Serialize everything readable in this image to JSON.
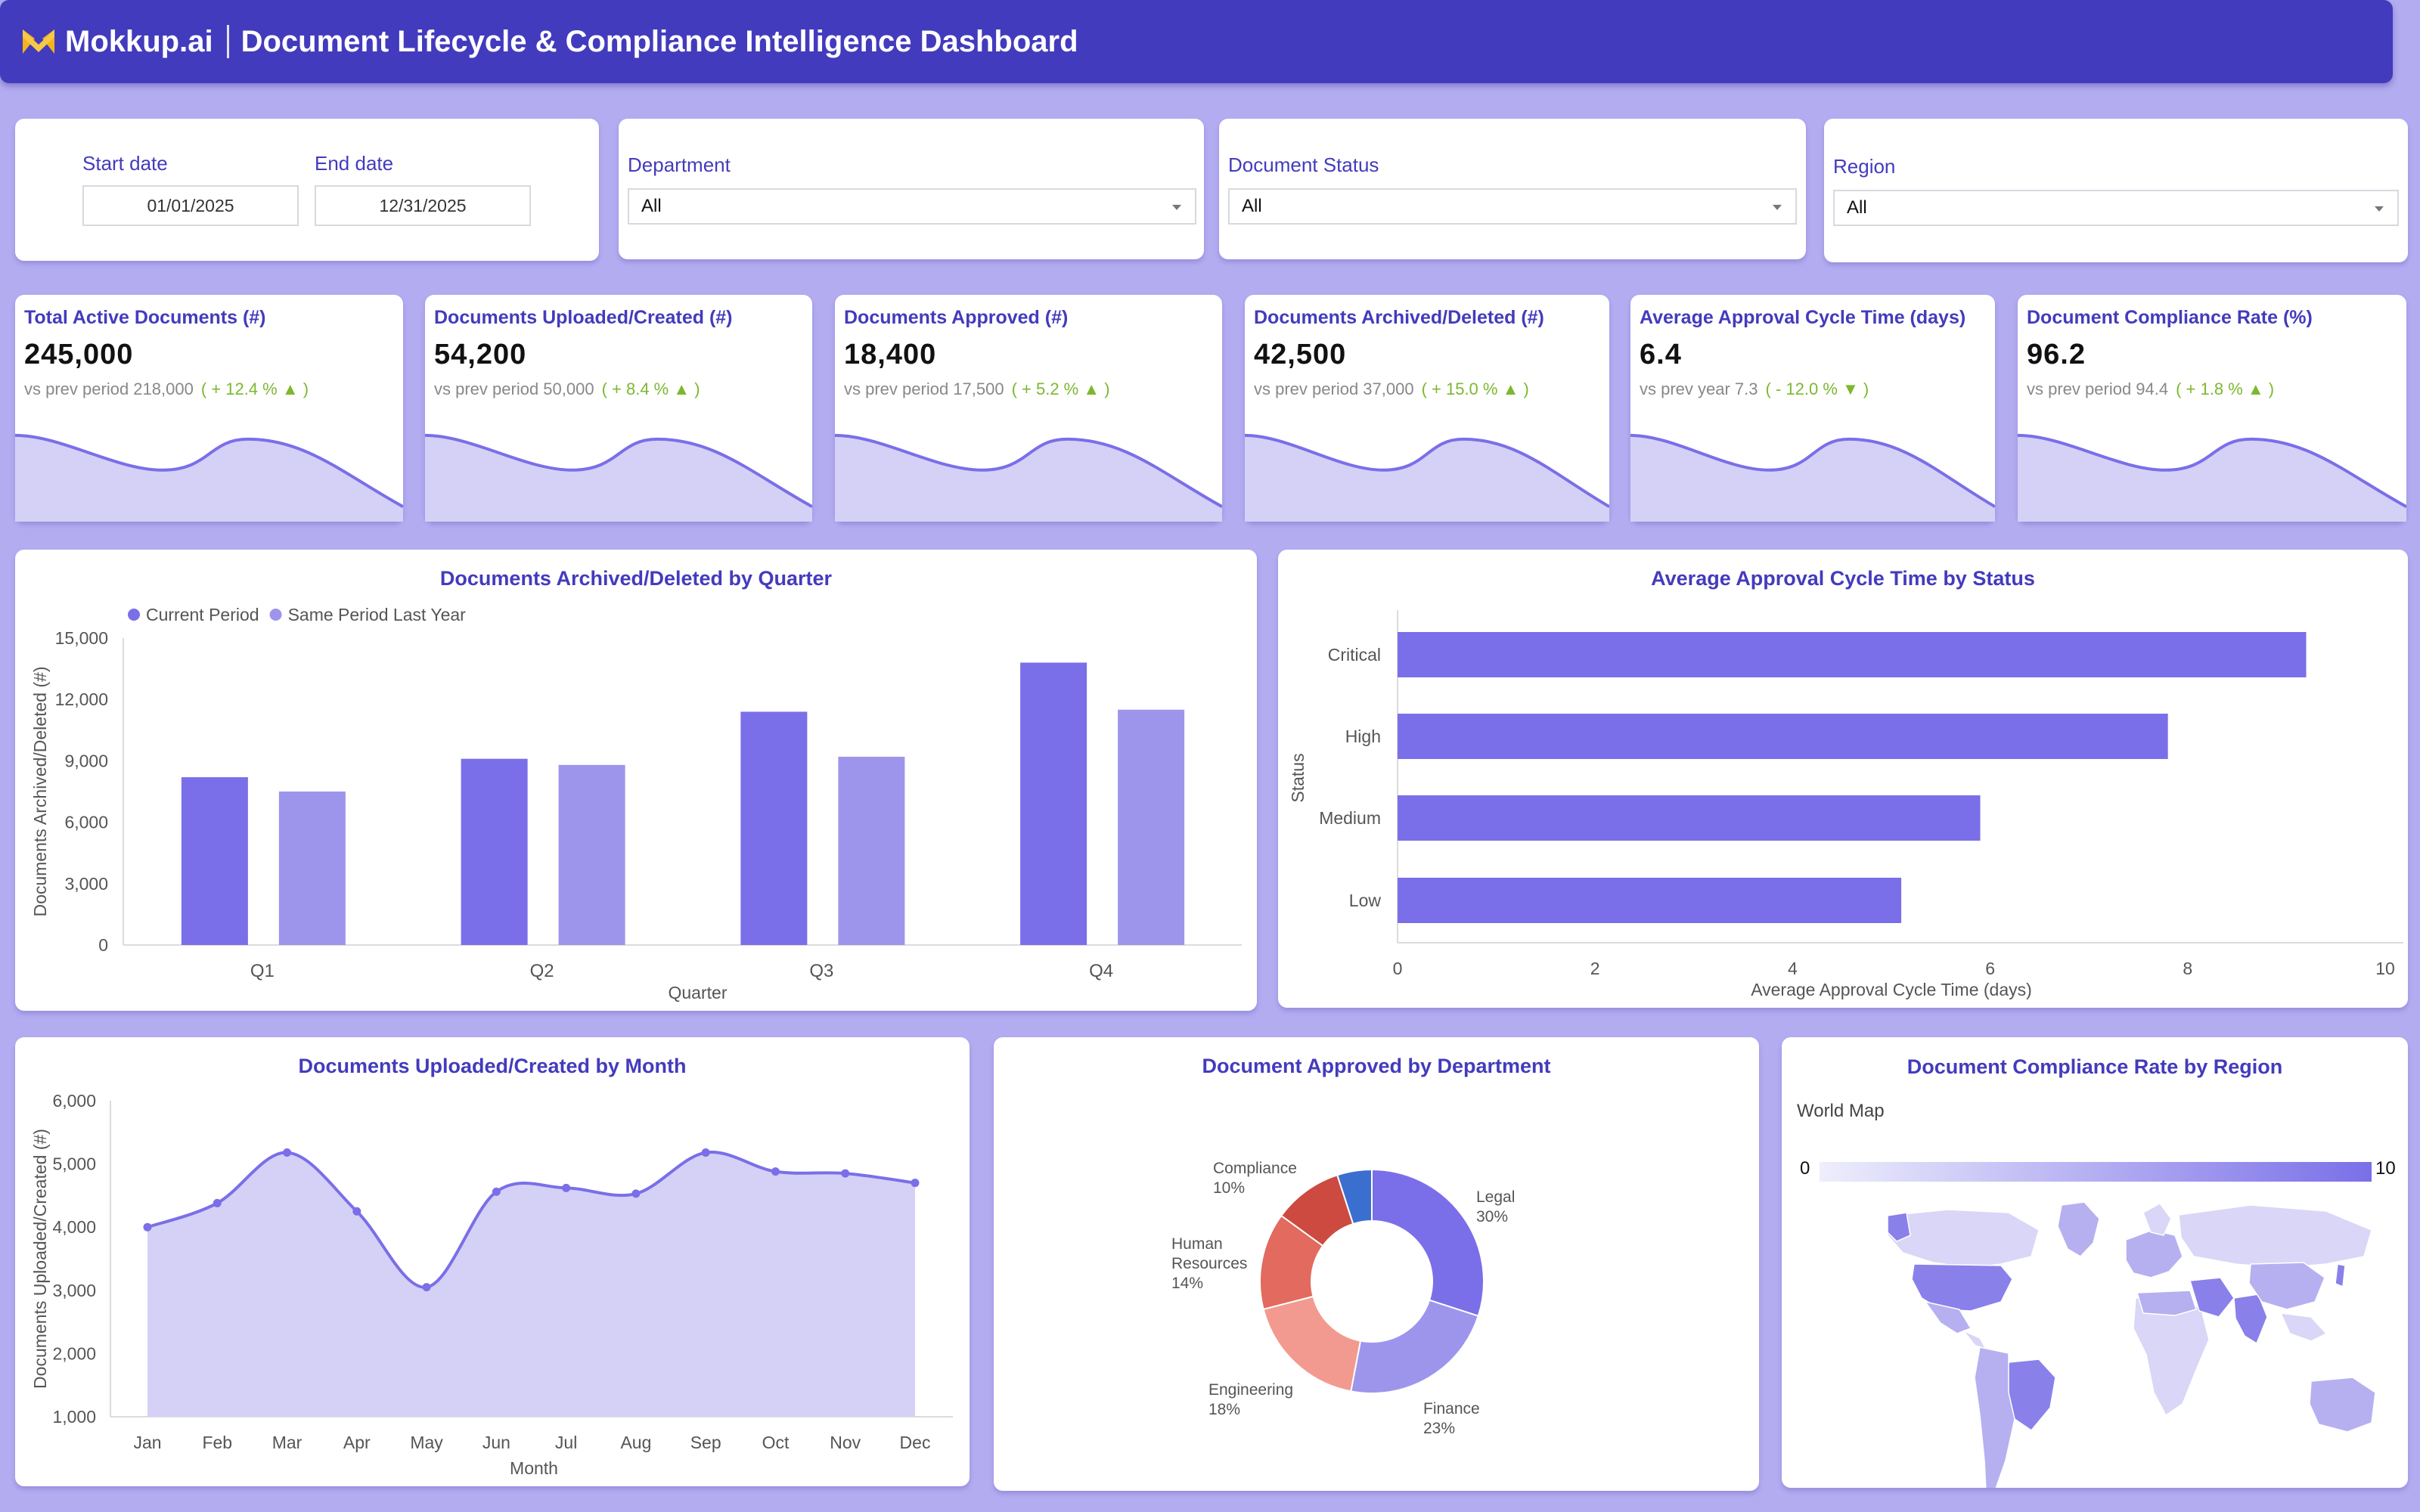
{
  "app": {
    "brand": "Mokkup.ai",
    "title": "Document Lifecycle & Compliance Intelligence Dashboard",
    "accent": "#433bbd",
    "logo_color": "#f5b21b"
  },
  "filters": {
    "start_date": {
      "label": "Start date",
      "value": "01/01/2025"
    },
    "end_date": {
      "label": "End date",
      "value": "12/31/2025"
    },
    "department": {
      "label": "Department",
      "value": "All"
    },
    "status": {
      "label": "Document Status",
      "value": "All"
    },
    "region": {
      "label": "Region",
      "value": "All"
    }
  },
  "kpis": [
    {
      "title": "Total Active Documents (#)",
      "value": "245,000",
      "prev": "vs prev period 218,000",
      "change": "( + 12.4 % ▲ )",
      "trend": "up"
    },
    {
      "title": "Documents Uploaded/Created (#)",
      "value": "54,200",
      "prev": "vs prev period 50,000",
      "change": "( + 8.4 % ▲ )",
      "trend": "up"
    },
    {
      "title": "Documents Approved (#)",
      "value": "18,400",
      "prev": "vs prev period 17,500",
      "change": "( + 5.2 % ▲ )",
      "trend": "up"
    },
    {
      "title": "Documents Archived/Deleted (#)",
      "value": "42,500",
      "prev": "vs prev period 37,000",
      "change": "( + 15.0 % ▲ )",
      "trend": "up"
    },
    {
      "title": "Average Approval Cycle Time (days)",
      "value": "6.4",
      "prev": "vs prev year 7.3",
      "change": "( - 12.0 % ▼ )",
      "trend": "down"
    },
    {
      "title": "Document Compliance Rate (%)",
      "value": "96.2",
      "prev": "vs prev period 94.4",
      "change": "( + 1.8 % ▲ )",
      "trend": "up"
    }
  ],
  "chart_data": [
    {
      "type": "bar",
      "title": "Documents Archived/Deleted by Quarter",
      "xlabel": "Quarter",
      "ylabel": "Documents Archived/Deleted (#)",
      "categories": [
        "Q1",
        "Q2",
        "Q3",
        "Q4"
      ],
      "series": [
        {
          "name": "Current Period",
          "values": [
            8200,
            9100,
            11400,
            13800
          ],
          "color": "#7a6fe8"
        },
        {
          "name": "Same Period Last Year",
          "values": [
            7500,
            8800,
            9200,
            11500
          ],
          "color": "#9d95ec"
        }
      ],
      "ylim": [
        0,
        15000
      ],
      "yticks": [
        "0",
        "3,000",
        "6,000",
        "9,000",
        "12,000",
        "15,000"
      ],
      "legend": "top-left",
      "grid": false
    },
    {
      "type": "bar",
      "orientation": "horizontal",
      "title": "Average Approval Cycle Time by Status",
      "xlabel": "Average Approval Cycle Time (days)",
      "ylabel": "Status",
      "categories": [
        "Critical",
        "High",
        "Medium",
        "Low"
      ],
      "values": [
        9.2,
        7.8,
        5.9,
        5.1
      ],
      "xlim": [
        0,
        10
      ],
      "xticks": [
        "0",
        "2",
        "4",
        "6",
        "8",
        "10"
      ],
      "color": "#7a6fe8"
    },
    {
      "type": "area",
      "title": "Documents Uploaded/Created by Month",
      "xlabel": "Month",
      "ylabel": "Documents Uploaded/Created (#)",
      "categories": [
        "Jan",
        "Feb",
        "Mar",
        "Apr",
        "May",
        "Jun",
        "Jul",
        "Aug",
        "Sep",
        "Oct",
        "Nov",
        "Dec"
      ],
      "values": [
        4000,
        4380,
        5180,
        4250,
        3050,
        4560,
        4620,
        4530,
        5180,
        4880,
        4850,
        4700
      ],
      "ylim": [
        1000,
        6000
      ],
      "yticks": [
        "1,000",
        "2,000",
        "3,000",
        "4,000",
        "5,000",
        "6,000"
      ],
      "color": "#7a6fe8"
    },
    {
      "type": "pie",
      "donut": true,
      "title": "Document Approved by Department",
      "slices": [
        {
          "label": "Legal",
          "pct": "30%",
          "value": 30,
          "color": "#7a6fe8"
        },
        {
          "label": "Finance",
          "pct": "23%",
          "value": 23,
          "color": "#9d95ec"
        },
        {
          "label": "Engineering",
          "pct": "18%",
          "value": 18,
          "color": "#f29a8f"
        },
        {
          "label": "Human Resources",
          "pct": "14%",
          "value": 14,
          "color": "#e26a5e"
        },
        {
          "label": "Compliance",
          "pct": "10%",
          "value": 10,
          "color": "#cc4a40"
        },
        {
          "label": "",
          "pct": "",
          "value": 5,
          "color": "#3b6fcf"
        }
      ]
    },
    {
      "type": "map",
      "title": "Document Compliance Rate by Region",
      "subtitle": "World Map",
      "scale_min": "0",
      "scale_max": "10",
      "color_low": "#eeeefc",
      "color_high": "#7a6fe8"
    }
  ]
}
